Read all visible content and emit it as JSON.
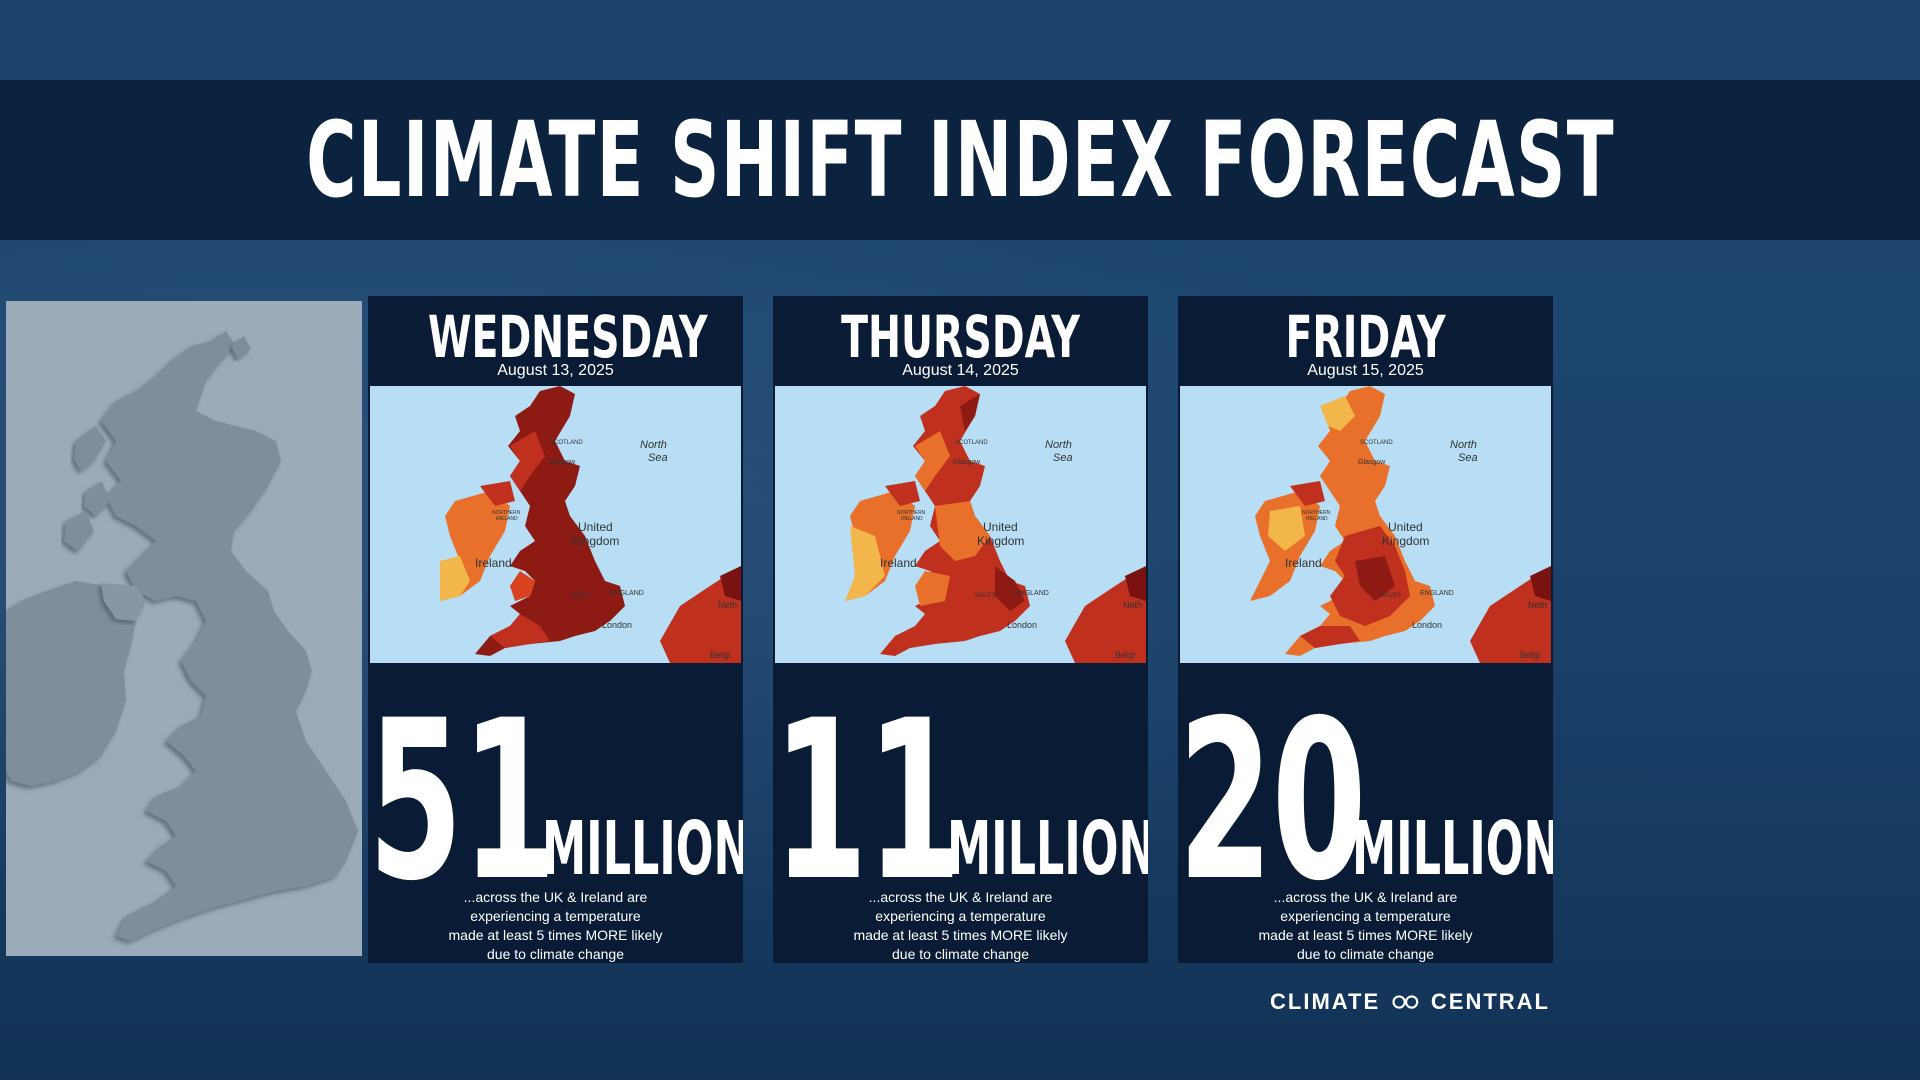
{
  "title": "CLIMATE SHIFT INDEX FORECAST",
  "cards": [
    {
      "day": "WEDNESDAY",
      "date": "August 13, 2025",
      "number": "51",
      "unit": "MILLION",
      "caption": [
        "...across the UK & Ireland are",
        "experiencing a temperature",
        "made at least 5 times MORE likely",
        "due to climate change"
      ]
    },
    {
      "day": "THURSDAY",
      "date": "August 14, 2025",
      "number": "11",
      "unit": "MILLION",
      "caption": [
        "...across the UK & Ireland are",
        "experiencing a temperature",
        "made at least 5 times MORE likely",
        "due to climate change"
      ]
    },
    {
      "day": "FRIDAY",
      "date": "August 15, 2025",
      "number": "20",
      "unit": "MILLION",
      "caption": [
        "...across the UK & Ireland are",
        "experiencing a temperature",
        "made at least 5 times MORE likely",
        "due to climate change"
      ]
    }
  ],
  "map_labels": {
    "sea": [
      "North",
      "Sea"
    ],
    "scotland": "SCOTLAND",
    "glasgow": "Glasgow",
    "northern_ireland": [
      "NORTHERN",
      "IRELAND"
    ],
    "uk": [
      "United",
      "Kingdom"
    ],
    "ireland": "Ireland",
    "wales": "WALES",
    "england": "ENGLAND",
    "london": "London",
    "neth": "Neth",
    "belg": "Belgi"
  },
  "logo": {
    "left": "CLIMATE",
    "right": "CENTRAL",
    "icon": "infinity-icon"
  },
  "colors": {
    "background": "#1b416a",
    "title_band": "#0c2340",
    "card": "#0a1c35",
    "sea": "#b7def5",
    "heat_dark": "#7a1212",
    "heat_red": "#c0301e",
    "heat_orange": "#e8702a",
    "heat_yellow": "#f3b64a"
  }
}
